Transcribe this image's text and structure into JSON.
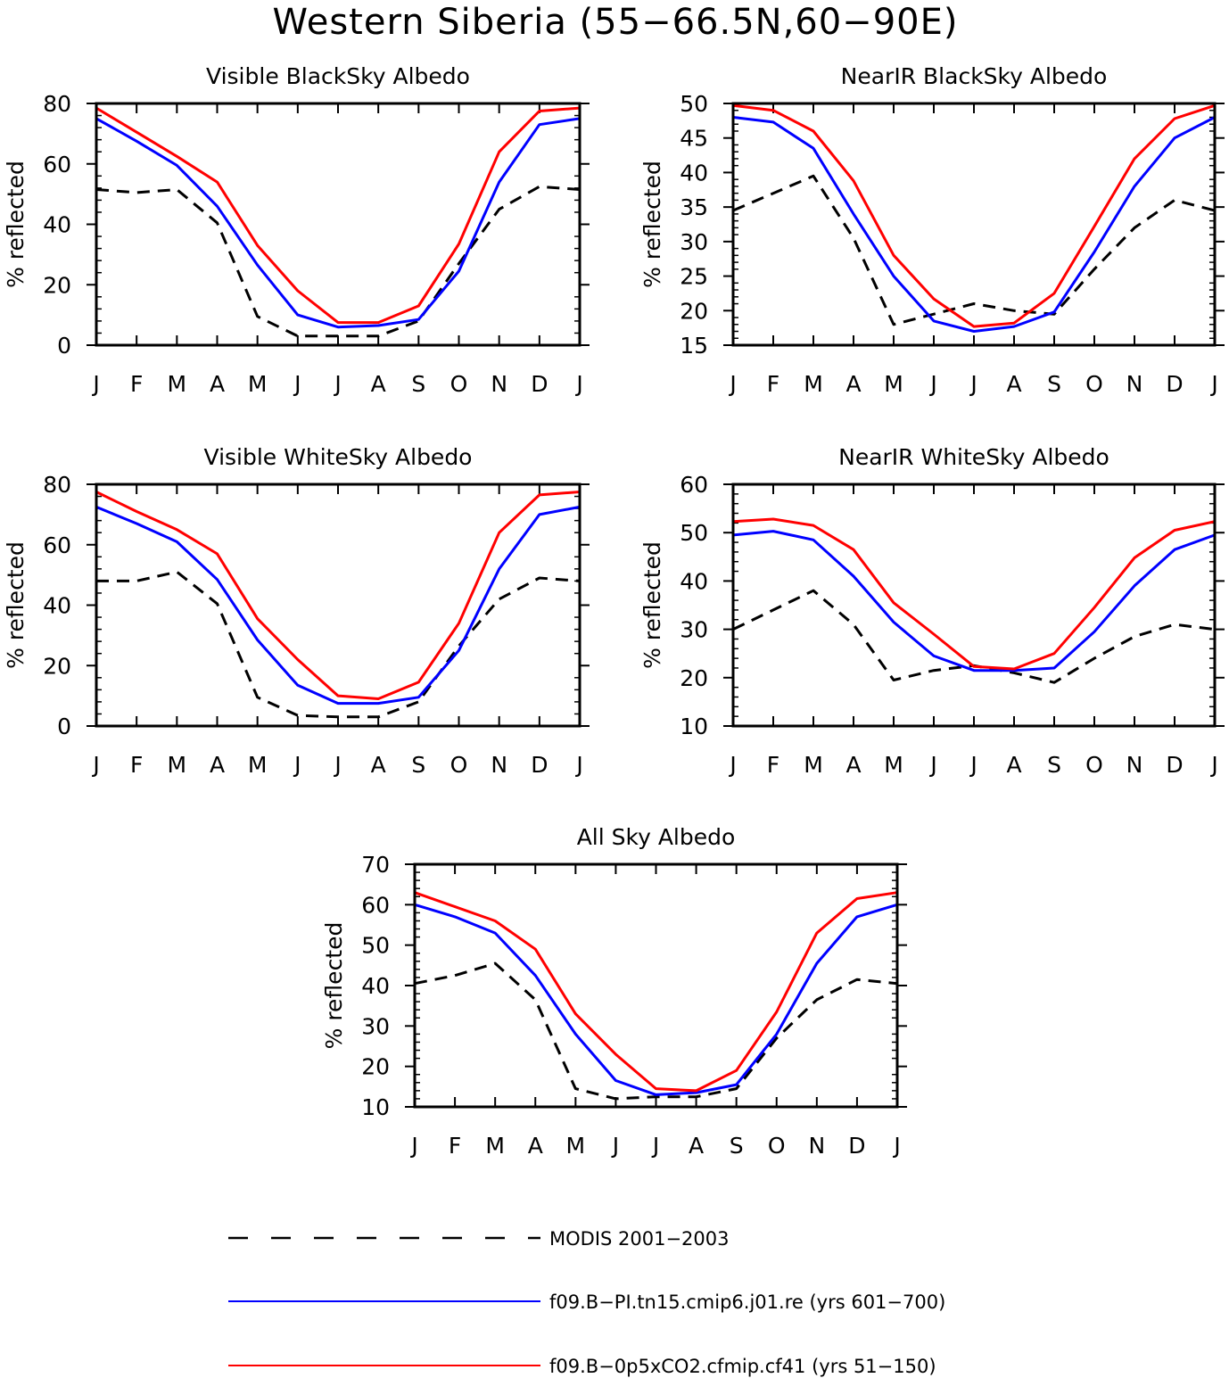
{
  "title": "Western Siberia (55−66.5N,60−90E)",
  "colors": {
    "modis": "#000000",
    "pi": "#0000ff",
    "co2": "#ff0000"
  },
  "legend": [
    {
      "label": "MODIS 2001−2003",
      "color": "#000000",
      "dashed": true
    },
    {
      "label": "f09.B−PI.tn15.cmip6.j01.re (yrs 601−700)",
      "color": "#0000ff",
      "dashed": false
    },
    {
      "label": "f09.B−0p5xCO2.cfmip.cf41 (yrs 51−150)",
      "color": "#ff0000",
      "dashed": false
    }
  ],
  "chart_data": [
    {
      "type": "line",
      "title": "Visible BlackSky Albedo",
      "ylabel": "% reflected",
      "categories": [
        "J",
        "F",
        "M",
        "A",
        "M",
        "J",
        "J",
        "A",
        "S",
        "O",
        "N",
        "D",
        "J"
      ],
      "ylim": [
        0,
        80
      ],
      "yticks": [
        0,
        20,
        40,
        60,
        80
      ],
      "series": [
        {
          "name": "MODIS 2001−2003",
          "values": [
            51.5,
            50.5,
            51.5,
            40.5,
            9.5,
            3.0,
            3.0,
            3.0,
            8.0,
            27.0,
            45.0,
            52.5,
            51.5
          ]
        },
        {
          "name": "f09.B−PI.tn15.cmip6.j01.re (yrs 601−700)",
          "values": [
            75.0,
            67.5,
            59.5,
            46.0,
            26.5,
            10.0,
            6.0,
            6.5,
            8.5,
            24.5,
            54.0,
            73.0,
            75.0
          ]
        },
        {
          "name": "f09.B−0p5xCO2.cfmip.cf41 (yrs 51−150)",
          "values": [
            78.5,
            70.5,
            62.5,
            54.0,
            33.0,
            18.0,
            7.5,
            7.5,
            13.0,
            33.5,
            64.0,
            77.5,
            78.5
          ]
        }
      ]
    },
    {
      "type": "line",
      "title": "NearIR BlackSky Albedo",
      "ylabel": "% reflected",
      "categories": [
        "J",
        "F",
        "M",
        "A",
        "M",
        "J",
        "J",
        "A",
        "S",
        "O",
        "N",
        "D",
        "J"
      ],
      "ylim": [
        15,
        50
      ],
      "yticks": [
        15,
        20,
        25,
        30,
        35,
        40,
        45,
        50
      ],
      "series": [
        {
          "name": "MODIS 2001−2003",
          "values": [
            34.5,
            37.0,
            39.5,
            30.5,
            18.0,
            19.5,
            21.0,
            20.0,
            19.5,
            26.0,
            32.0,
            36.0,
            34.5
          ]
        },
        {
          "name": "f09.B−PI.tn15.cmip6.j01.re (yrs 601−700)",
          "values": [
            48.0,
            47.3,
            43.5,
            34.0,
            25.0,
            18.5,
            17.0,
            17.7,
            19.8,
            28.5,
            38.0,
            45.0,
            48.0
          ]
        },
        {
          "name": "f09.B−0p5xCO2.cfmip.cf41 (yrs 51−150)",
          "values": [
            49.7,
            49.0,
            46.0,
            38.8,
            28.0,
            21.7,
            17.7,
            18.2,
            22.5,
            32.2,
            42.0,
            47.8,
            49.7
          ]
        }
      ]
    },
    {
      "type": "line",
      "title": "Visible WhiteSky Albedo",
      "ylabel": "% reflected",
      "categories": [
        "J",
        "F",
        "M",
        "A",
        "M",
        "J",
        "J",
        "A",
        "S",
        "O",
        "N",
        "D",
        "J"
      ],
      "ylim": [
        0,
        80
      ],
      "yticks": [
        0,
        20,
        40,
        60,
        80
      ],
      "series": [
        {
          "name": "MODIS 2001−2003",
          "values": [
            48.0,
            48.0,
            51.0,
            40.5,
            9.5,
            3.5,
            3.0,
            3.0,
            8.0,
            26.5,
            42.0,
            49.0,
            48.0
          ]
        },
        {
          "name": "f09.B−PI.tn15.cmip6.j01.re (yrs 601−700)",
          "values": [
            72.5,
            67.0,
            61.0,
            48.5,
            28.5,
            13.5,
            7.5,
            7.5,
            9.5,
            25.0,
            52.0,
            70.0,
            72.5
          ]
        },
        {
          "name": "f09.B−0p5xCO2.cfmip.cf41 (yrs 51−150)",
          "values": [
            77.5,
            71.0,
            65.0,
            57.0,
            35.5,
            22.0,
            10.0,
            9.0,
            14.5,
            34.0,
            64.0,
            76.5,
            77.5
          ]
        }
      ]
    },
    {
      "type": "line",
      "title": "NearIR WhiteSky Albedo",
      "ylabel": "% reflected",
      "categories": [
        "J",
        "F",
        "M",
        "A",
        "M",
        "J",
        "J",
        "A",
        "S",
        "O",
        "N",
        "D",
        "J"
      ],
      "ylim": [
        10,
        60
      ],
      "yticks": [
        10,
        20,
        30,
        40,
        50,
        60
      ],
      "series": [
        {
          "name": "MODIS 2001−2003",
          "values": [
            30.0,
            34.0,
            38.0,
            31.0,
            19.5,
            21.5,
            22.5,
            21.0,
            19.0,
            24.0,
            28.5,
            31.0,
            30.0
          ]
        },
        {
          "name": "f09.B−PI.tn15.cmip6.j01.re (yrs 601−700)",
          "values": [
            49.5,
            50.3,
            48.5,
            41.0,
            31.5,
            24.5,
            21.5,
            21.5,
            22.0,
            29.5,
            39.0,
            46.5,
            49.5
          ]
        },
        {
          "name": "f09.B−0p5xCO2.cfmip.cf41 (yrs 51−150)",
          "values": [
            52.3,
            52.8,
            51.5,
            46.5,
            35.5,
            29.0,
            22.3,
            21.8,
            25.0,
            34.5,
            44.8,
            50.5,
            52.3
          ]
        }
      ]
    },
    {
      "type": "line",
      "title": "All Sky Albedo",
      "ylabel": "% reflected",
      "categories": [
        "J",
        "F",
        "M",
        "A",
        "M",
        "J",
        "J",
        "A",
        "S",
        "O",
        "N",
        "D",
        "J"
      ],
      "ylim": [
        10,
        70
      ],
      "yticks": [
        10,
        20,
        30,
        40,
        50,
        60,
        70
      ],
      "series": [
        {
          "name": "MODIS 2001−2003",
          "values": [
            40.5,
            42.5,
            45.5,
            36.5,
            14.5,
            12.0,
            12.5,
            12.5,
            14.5,
            27.0,
            36.5,
            41.5,
            40.5
          ]
        },
        {
          "name": "f09.B−PI.tn15.cmip6.j01.re (yrs 601−700)",
          "values": [
            60.0,
            57.0,
            53.0,
            42.5,
            28.0,
            16.5,
            13.0,
            13.5,
            15.5,
            28.0,
            45.5,
            57.0,
            60.0
          ]
        },
        {
          "name": "f09.B−0p5xCO2.cfmip.cf41 (yrs 51−150)",
          "values": [
            63.0,
            59.5,
            56.0,
            49.0,
            33.0,
            23.0,
            14.5,
            14.0,
            19.0,
            33.5,
            53.0,
            61.5,
            63.0
          ]
        }
      ]
    }
  ]
}
